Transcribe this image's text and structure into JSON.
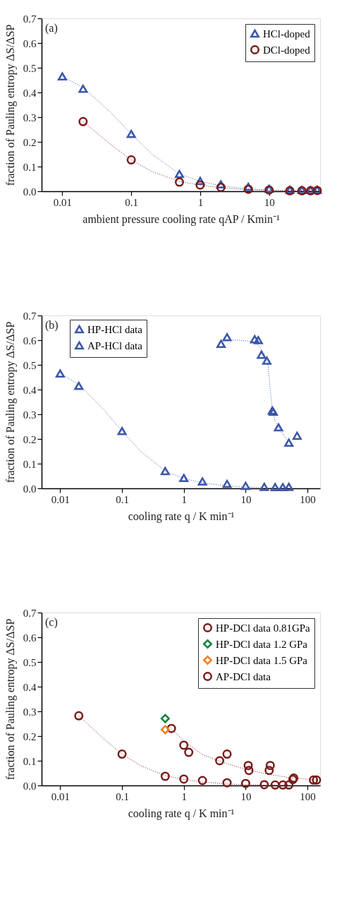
{
  "chart_data": [
    {
      "type": "scatter",
      "xlabel": "ambient pressure cooling rate qAP / Kmin⁻¹",
      "ylabel": "fraction of Pauling entropy ΔS/ΔSP",
      "log": "x",
      "grid": false,
      "legend": "top right",
      "annotations": [
        "(a)"
      ],
      "xlim": [
        0.005,
        55
      ],
      "xticks": [
        0.01,
        0.1,
        1,
        10
      ],
      "ylim": [
        0,
        0.7
      ],
      "yticks": [
        {
          "value": 0,
          "label": "0.0"
        },
        {
          "value": 0.1,
          "label": "0.1"
        },
        {
          "value": 0.2,
          "label": "0.2"
        },
        {
          "value": 0.3,
          "label": "0.3"
        },
        {
          "value": 0.4,
          "label": "0.4"
        },
        {
          "value": 0.5,
          "label": "0.5"
        },
        {
          "value": 0.6,
          "label": "0.6"
        },
        {
          "value": 0.7,
          "label": "0.7"
        }
      ],
      "series": [
        {
          "name": "HCl-doped",
          "color": "#3a56a8",
          "marker": "triangle",
          "x": [
            0.01,
            0.02,
            0.1,
            0.5,
            1,
            2,
            5,
            10,
            20,
            30,
            40,
            50
          ],
          "values": [
            0.465,
            0.415,
            0.232,
            0.07,
            0.042,
            0.028,
            0.018,
            0.01,
            0.006,
            0.005,
            0.005,
            0.006
          ]
        },
        {
          "name": "DCl-doped",
          "color": "#7b1a1a",
          "marker": "circle",
          "x": [
            0.02,
            0.1,
            0.5,
            1,
            2,
            5,
            10,
            20,
            30,
            40,
            50
          ],
          "values": [
            0.282,
            0.127,
            0.037,
            0.025,
            0.016,
            0.008,
            0.005,
            0.002,
            0.002,
            0.002,
            0.003
          ]
        },
        {
          "type": "line",
          "color": "#3a56a8",
          "line_style": "dotted",
          "x": [
            0.01,
            0.02,
            0.05,
            0.1,
            0.2,
            0.5,
            1,
            2,
            5,
            10,
            20,
            55
          ],
          "values": [
            0.465,
            0.42,
            0.32,
            0.232,
            0.15,
            0.07,
            0.04,
            0.022,
            0.01,
            0.005,
            0.002,
            0.001
          ]
        },
        {
          "type": "line",
          "color": "#7b1a1a",
          "line_style": "dotted",
          "x": [
            0.02,
            0.05,
            0.1,
            0.2,
            0.5,
            1,
            2,
            5,
            10,
            55
          ],
          "values": [
            0.282,
            0.19,
            0.127,
            0.08,
            0.04,
            0.024,
            0.014,
            0.006,
            0.003,
            0.001
          ]
        }
      ]
    },
    {
      "type": "scatter",
      "xlabel": "cooling rate q / K min⁻¹",
      "ylabel": "fraction of Pauling entropy ΔS/ΔSP",
      "log": "x",
      "grid": false,
      "legend": "top left",
      "annotations": [
        "(b)"
      ],
      "xlim": [
        0.005,
        160
      ],
      "xticks": [
        0.01,
        0.1,
        1,
        10,
        100
      ],
      "ylim": [
        0,
        0.7
      ],
      "yticks": [
        {
          "value": 0,
          "label": "0.0"
        },
        {
          "value": 0.1,
          "label": "0.1"
        },
        {
          "value": 0.2,
          "label": "0.2"
        },
        {
          "value": 0.3,
          "label": "0.3"
        },
        {
          "value": 0.4,
          "label": "0.4"
        },
        {
          "value": 0.5,
          "label": "0.5"
        },
        {
          "value": 0.6,
          "label": "0.6"
        },
        {
          "value": 0.7,
          "label": "0.7"
        }
      ],
      "series": [
        {
          "name": "HP-HCl data",
          "color": "#3a56a8",
          "marker": "triangle",
          "x": [
            4,
            5,
            14,
            16,
            18,
            22,
            27,
            28,
            34,
            50,
            68
          ],
          "values": [
            0.585,
            0.612,
            0.604,
            0.6,
            0.541,
            0.517,
            0.315,
            0.31,
            0.247,
            0.185,
            0.213
          ]
        },
        {
          "name": "AP-HCl data",
          "color": "#3a56a8",
          "marker": "triangle",
          "x": [
            0.01,
            0.02,
            0.1,
            0.5,
            1,
            2,
            5,
            10,
            20,
            30,
            40,
            50
          ],
          "values": [
            0.465,
            0.415,
            0.232,
            0.07,
            0.042,
            0.028,
            0.018,
            0.01,
            0.006,
            0.005,
            0.005,
            0.006
          ]
        },
        {
          "type": "line",
          "color": "#3a56a8",
          "line_style": "dotted",
          "x": [
            0.01,
            0.02,
            0.05,
            0.1,
            0.2,
            0.5,
            1,
            2,
            5,
            10,
            20,
            50
          ],
          "values": [
            0.465,
            0.42,
            0.32,
            0.232,
            0.15,
            0.07,
            0.04,
            0.022,
            0.01,
            0.005,
            0.002,
            0.001
          ]
        },
        {
          "type": "line",
          "color": "#3a56a8",
          "line_style": "dotted",
          "x": [
            4.5,
            8,
            12,
            16,
            20,
            23,
            25,
            27,
            30,
            40,
            50
          ],
          "values": [
            0.6,
            0.6,
            0.595,
            0.58,
            0.545,
            0.5,
            0.4,
            0.32,
            0.27,
            0.22,
            0.185
          ]
        }
      ]
    },
    {
      "type": "scatter",
      "xlabel": "cooling rate q / K min⁻¹",
      "ylabel": "fraction of Pauling entropy ΔS/ΔSP",
      "log": "x",
      "grid": false,
      "legend": "top right",
      "annotations": [
        "(c)"
      ],
      "xlim": [
        0.005,
        160
      ],
      "xticks": [
        0.01,
        0.1,
        1,
        10,
        100
      ],
      "ylim": [
        0,
        0.7
      ],
      "yticks": [
        {
          "value": 0,
          "label": "0.0"
        },
        {
          "value": 0.1,
          "label": "0.1"
        },
        {
          "value": 0.2,
          "label": "0.2"
        },
        {
          "value": 0.3,
          "label": "0.3"
        },
        {
          "value": 0.4,
          "label": "0.4"
        },
        {
          "value": 0.5,
          "label": "0.5"
        },
        {
          "value": 0.6,
          "label": "0.6"
        },
        {
          "value": 0.7,
          "label": "0.7"
        }
      ],
      "series": [
        {
          "name": "HP-DCl data 0.81GPa",
          "color": "#7b1a1a",
          "marker": "circle",
          "x": [
            0.63,
            1,
            1.2,
            3.8,
            5,
            11,
            11.3,
            25,
            24,
            58,
            60,
            125,
            140
          ],
          "values": [
            0.231,
            0.163,
            0.134,
            0.1,
            0.127,
            0.081,
            0.061,
            0.081,
            0.061,
            0.024,
            0.03,
            0.022,
            0.022
          ]
        },
        {
          "name": "HP-DCl data 1.2 GPa",
          "color": "#128040",
          "marker": "diamond",
          "x": [
            0.5
          ],
          "values": [
            0.271
          ]
        },
        {
          "name": "HP-DCl data 1.5 GPa",
          "color": "#f08020",
          "marker": "diamond",
          "x": [
            0.5
          ],
          "values": [
            0.226
          ]
        },
        {
          "name": "AP-DCl data",
          "color": "#7b1a1a",
          "marker": "circle",
          "x": [
            0.02,
            0.1,
            0.5,
            1,
            2,
            5,
            10,
            20,
            30,
            40,
            50
          ],
          "values": [
            0.282,
            0.127,
            0.037,
            0.026,
            0.02,
            0.011,
            0.008,
            0.003,
            0.002,
            0.002,
            0.002
          ]
        },
        {
          "type": "line",
          "color": "#7b1a1a",
          "line_style": "dotted",
          "x": [
            0.02,
            0.05,
            0.1,
            0.2,
            0.5,
            1,
            2,
            5,
            10,
            50
          ],
          "values": [
            0.282,
            0.19,
            0.127,
            0.08,
            0.04,
            0.024,
            0.014,
            0.006,
            0.003,
            0.001
          ]
        },
        {
          "type": "line",
          "color": "#7b1a1a",
          "line_style": "dotted",
          "x": [
            0.6,
            1,
            2,
            5,
            10,
            20,
            50,
            140
          ],
          "values": [
            0.235,
            0.18,
            0.125,
            0.088,
            0.066,
            0.048,
            0.032,
            0.022
          ]
        }
      ]
    }
  ]
}
